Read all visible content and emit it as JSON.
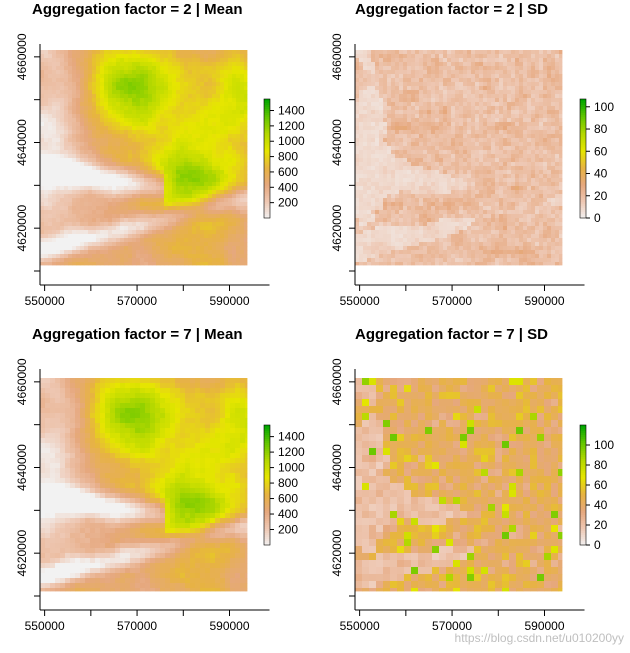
{
  "watermark": "https://blog.csdn.net/u010200yy",
  "chart_data": [
    {
      "type": "heatmap",
      "title": "Aggregation factor = 2 | Mean",
      "variable": "mean",
      "xlim": [
        549000,
        594000
      ],
      "ylim": [
        4610000,
        4663000
      ],
      "x_ticks": [
        550000,
        570000,
        590000
      ],
      "y_ticks": [
        4620000,
        4640000,
        4660000
      ],
      "colorbar": {
        "min": 0,
        "max": 1550,
        "ticks": [
          200,
          400,
          600,
          800,
          1000,
          1200,
          1400
        ]
      },
      "palette": "terrain",
      "pixel_grain": "fine"
    },
    {
      "type": "heatmap",
      "title": "Aggregation factor = 2 | SD",
      "variable": "sd",
      "xlim": [
        549000,
        594000
      ],
      "ylim": [
        4610000,
        4663000
      ],
      "x_ticks": [
        550000,
        570000,
        590000
      ],
      "y_ticks": [
        4620000,
        4640000,
        4660000
      ],
      "colorbar": {
        "min": 0,
        "max": 107,
        "ticks": [
          0,
          20,
          40,
          60,
          80,
          100
        ]
      },
      "palette": "terrain",
      "pixel_grain": "fine"
    },
    {
      "type": "heatmap",
      "title": "Aggregation factor = 7 | Mean",
      "variable": "mean",
      "xlim": [
        549000,
        594000
      ],
      "ylim": [
        4610000,
        4663000
      ],
      "x_ticks": [
        550000,
        570000,
        590000
      ],
      "y_ticks": [
        4620000,
        4640000,
        4660000
      ],
      "colorbar": {
        "min": 0,
        "max": 1550,
        "ticks": [
          200,
          400,
          600,
          800,
          1000,
          1200,
          1400
        ]
      },
      "palette": "terrain",
      "pixel_grain": "medium"
    },
    {
      "type": "heatmap",
      "title": "Aggregation factor = 7 | SD",
      "variable": "sd",
      "xlim": [
        549000,
        594000
      ],
      "ylim": [
        4610000,
        4663000
      ],
      "x_ticks": [
        550000,
        570000,
        590000
      ],
      "y_ticks": [
        4620000,
        4640000,
        4660000
      ],
      "colorbar": {
        "min": 0,
        "max": 120,
        "ticks": [
          0,
          20,
          40,
          60,
          80,
          100
        ]
      },
      "palette": "terrain",
      "pixel_grain": "coarse"
    }
  ],
  "palette_colors": [
    "#f2f2f2",
    "#eec8b4",
    "#e6a87e",
    "#e7b342",
    "#e6e600",
    "#b4d800",
    "#63c600",
    "#00a600"
  ]
}
